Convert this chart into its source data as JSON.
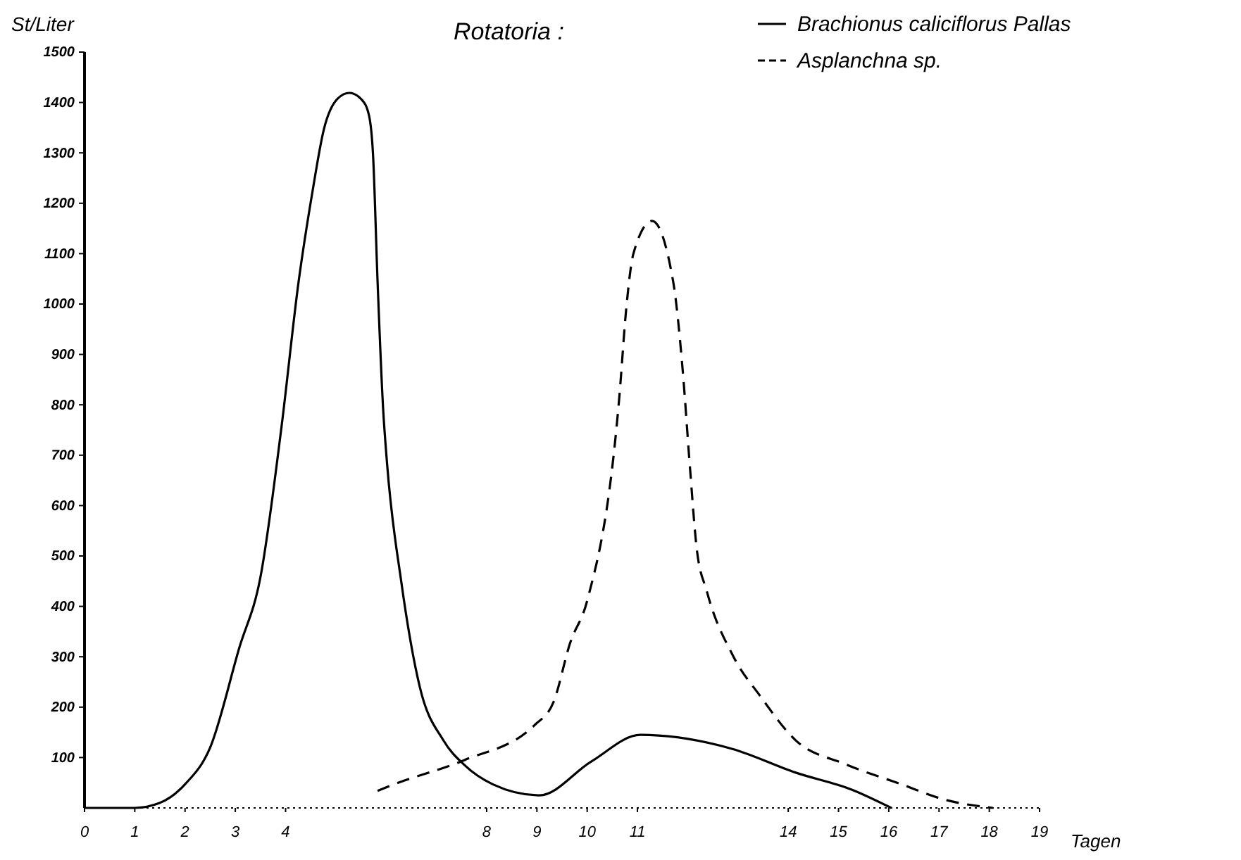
{
  "chart_data": {
    "type": "line",
    "title": "Rotatoria :",
    "xlabel": "Tagen",
    "ylabel": "St/Liter",
    "xlim": [
      0,
      19
    ],
    "ylim": [
      0,
      1500
    ],
    "xticks": [
      0,
      1,
      2,
      3,
      4,
      8,
      9,
      10,
      11,
      14,
      15,
      16,
      17,
      18,
      19
    ],
    "yticks": [
      100,
      200,
      300,
      400,
      500,
      600,
      700,
      800,
      900,
      1000,
      1100,
      1200,
      1300,
      1400,
      1500
    ],
    "legend": "top right",
    "series": [
      {
        "name": "Brachionus caliciflorus Pallas",
        "color": "#000000",
        "line_style": "solid",
        "x": [
          0,
          1,
          1.5,
          2,
          2.5,
          3.08,
          3.5,
          3.92,
          4.26,
          4.54,
          4.76,
          5.04,
          5.27,
          5.52,
          5.66,
          5.74,
          5.83,
          5.94,
          6.02,
          6.3,
          6.67,
          7.14,
          7.56,
          8.12,
          9.05,
          10.08,
          11.06,
          12.89,
          14.15,
          15.27,
          16.05
        ],
        "values": [
          0,
          0,
          10,
          47,
          120,
          318,
          458,
          757,
          1045,
          1226,
          1346,
          1408,
          1419,
          1405,
          1374,
          1296,
          1045,
          793,
          682,
          450,
          240,
          134,
          85,
          47,
          25,
          92,
          145,
          117,
          70,
          36,
          0
        ]
      },
      {
        "name": "Asplanchna sp.",
        "color": "#000000",
        "line_style": "dashed",
        "x": [
          5.83,
          6.16,
          7.56,
          8.96,
          9.33,
          9.66,
          10.0,
          10.64,
          10.78,
          10.92,
          11.29,
          11.71,
          11.9,
          12.04,
          12.18,
          12.38,
          12.89,
          13.45,
          14.15,
          15.13,
          16.25,
          17.09,
          18.07
        ],
        "values": [
          34,
          47,
          95,
          165,
          210,
          327,
          411,
          816,
          994,
          1100,
          1165,
          1045,
          869,
          682,
          514,
          430,
          304,
          221,
          134,
          87,
          47,
          17,
          0
        ]
      }
    ]
  }
}
